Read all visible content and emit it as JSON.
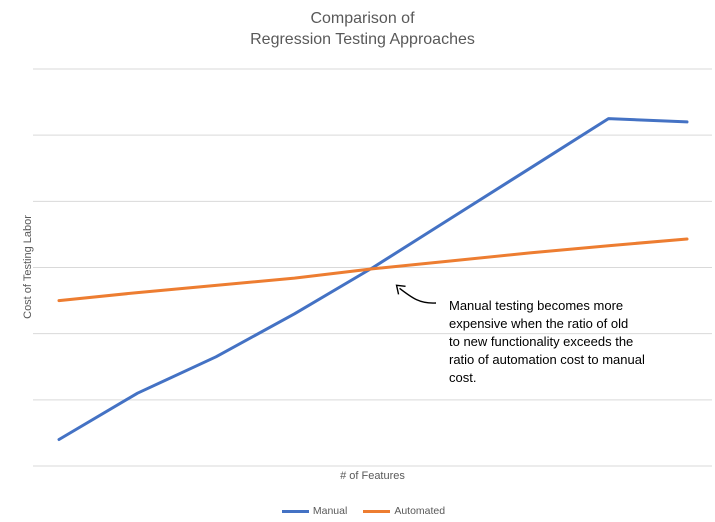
{
  "chart_data": {
    "type": "line",
    "title_lines": [
      "Comparison of",
      "Regression Testing Approaches"
    ],
    "xlabel": "# of Features",
    "ylabel": "Cost of Testing Labor",
    "ylim": [
      0,
      6
    ],
    "grid": true,
    "legend_position": "bottom",
    "series": [
      {
        "name": "Manual",
        "color": "#4472C4",
        "x": [
          0,
          1,
          2,
          3,
          4,
          5,
          6,
          7,
          8
        ],
        "values": [
          0.4,
          1.1,
          1.65,
          2.3,
          3.0,
          3.75,
          4.5,
          5.25,
          5.2
        ]
      },
      {
        "name": "Automated",
        "color": "#ED7D31",
        "x": [
          0,
          1,
          2,
          3,
          4,
          5,
          6,
          7,
          8
        ],
        "values": [
          2.5,
          2.62,
          2.73,
          2.84,
          2.98,
          3.1,
          3.22,
          3.33,
          3.43
        ]
      }
    ],
    "annotation": {
      "lines": [
        "Manual testing becomes more",
        "expensive when the ratio of old",
        "to new functionality exceeds the",
        "ratio of automation cost to manual",
        "cost."
      ],
      "arrow_target": {
        "x": 4.3,
        "y": 2.73
      }
    }
  }
}
